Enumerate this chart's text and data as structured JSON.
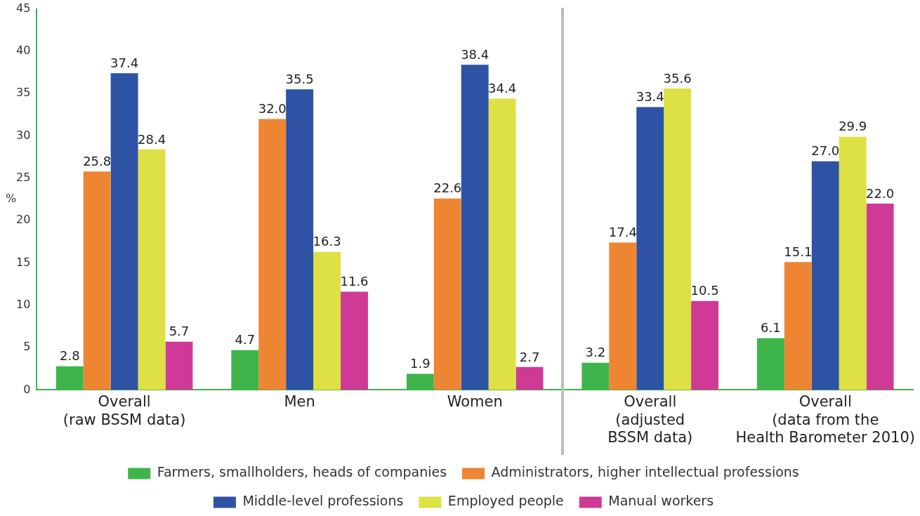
{
  "chart_data": {
    "type": "bar",
    "ylabel": "%",
    "categories": [
      "Overall\n(raw BSSM data)",
      "Men",
      "Women",
      "Overall\n(adjusted\nBSSM data)",
      "Overall\n(data from the\nHealth Barometer 2010)"
    ],
    "series": [
      {
        "name": "Farmers, smallholders, heads of companies",
        "color": "#3db54a",
        "values": [
          2.8,
          4.7,
          1.9,
          3.2,
          6.1
        ],
        "value_labels": [
          "2.8",
          "4.7",
          "1.9",
          "3.2",
          "6.1"
        ]
      },
      {
        "name": "Administrators, higher intellectual professions",
        "color": "#ee8533",
        "values": [
          25.8,
          32.0,
          22.6,
          17.4,
          15.1
        ],
        "value_labels": [
          "25.8",
          "32.0",
          "22.6",
          "17.4",
          "15.1"
        ]
      },
      {
        "name": "Middle-level professions",
        "color": "#2e52a4",
        "values": [
          37.4,
          35.5,
          38.4,
          33.4,
          27.0
        ],
        "value_labels": [
          "37.4",
          "35.5",
          "38.4",
          "33.4",
          "27.0"
        ]
      },
      {
        "name": "Employed people",
        "color": "#dde143",
        "values": [
          28.4,
          16.3,
          34.4,
          35.6,
          29.9
        ],
        "value_labels": [
          "28.4",
          "16.3",
          "34.4",
          "35.6",
          "29.9"
        ]
      },
      {
        "name": "Manual workers",
        "color": "#cf3a96",
        "values": [
          5.7,
          11.6,
          2.7,
          10.5,
          22.0
        ],
        "value_labels": [
          "5.7",
          "11.6",
          "2.7",
          "10.5",
          "22.0"
        ]
      }
    ],
    "ylim": [
      0,
      45
    ],
    "yticks": [
      0,
      5,
      10,
      15,
      20,
      25,
      30,
      35,
      40,
      45
    ],
    "grid": false,
    "legend": "bottom"
  }
}
